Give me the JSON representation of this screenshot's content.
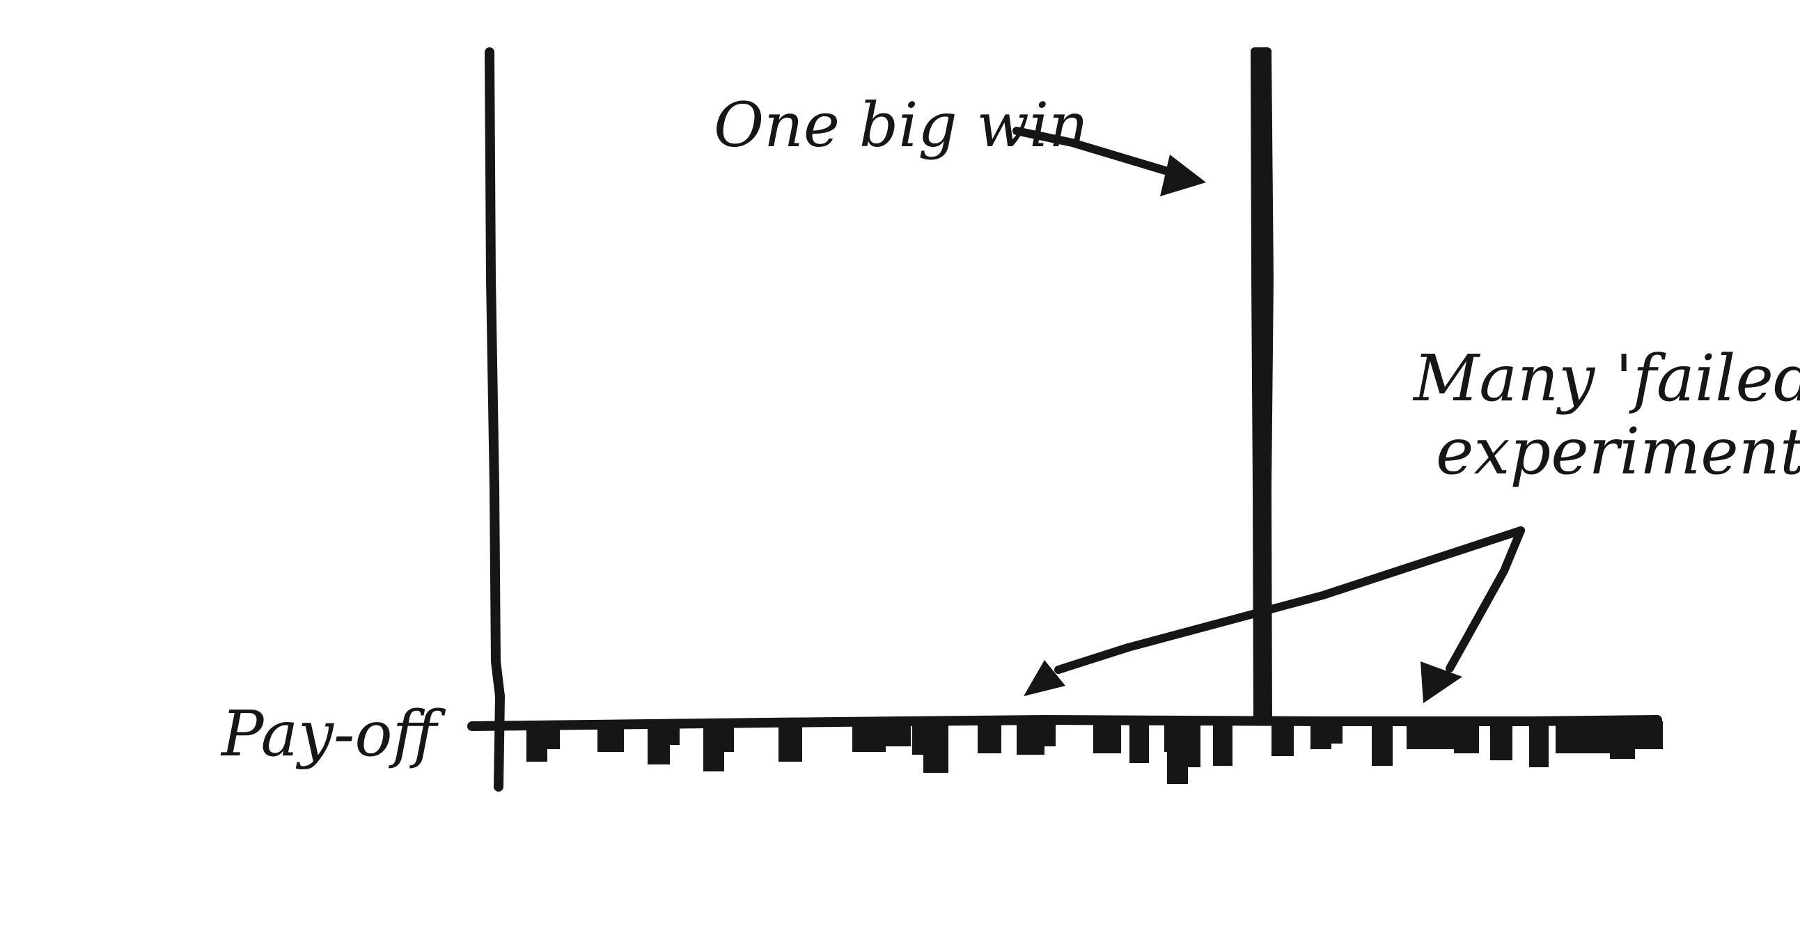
{
  "diagram": {
    "colors": {
      "ink": "#161616",
      "background": "#ffffff"
    },
    "labels": {
      "one_big_win": "One big win",
      "many_failed_line1": "Many 'failed'",
      "many_failed_line2": "experiments",
      "payoff": "Pay-off"
    },
    "bars": {
      "big_win_payoff_relative": 1.0,
      "small_losses_count": 30
    }
  }
}
